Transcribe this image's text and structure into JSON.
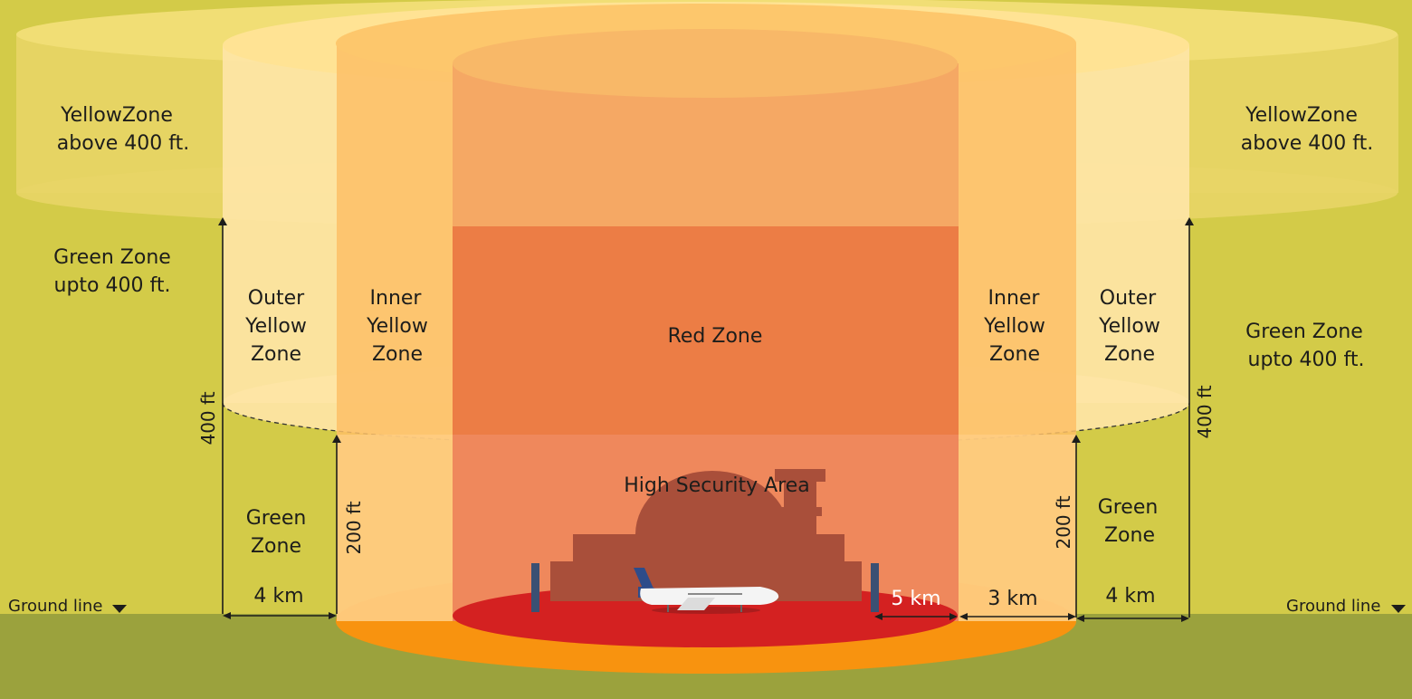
{
  "labels": {
    "yellow_left_1": "YellowZone",
    "yellow_left_2": "above 400 ft.",
    "yellow_right_1": "YellowZone",
    "yellow_right_2": "above 400 ft.",
    "green_left_1": "Green Zone",
    "green_left_2": "upto 400 ft.",
    "green_right_1": "Green Zone",
    "green_right_2": "upto 400 ft.",
    "outer_yellow_1": "Outer",
    "outer_yellow_2": "Yellow",
    "outer_yellow_3": "Zone",
    "inner_yellow_1": "Inner",
    "inner_yellow_2": "Yellow",
    "inner_yellow_3": "Zone",
    "red_zone": "Red Zone",
    "high_security": "High Security Area",
    "green_small_1": "Green",
    "green_small_2": "Zone",
    "ground_line": "Ground line"
  },
  "dimensions": {
    "h400": "400 ft",
    "h200": "200 ft",
    "d4km": "4 km",
    "d3km": "3 km",
    "d5km": "5 km"
  },
  "colors": {
    "background": "#d3cb48",
    "ground": "#9ba23d",
    "red_zone": "#ec7d45",
    "inner_yellow": "#fdbf66",
    "outer_yellow": "#fee5a6",
    "high_security_disk": "#d42121",
    "orange_disk": "#f8930f",
    "building": "#a94f3a"
  },
  "icons": [
    "airplane-icon",
    "airport-building-icon",
    "ground-arrow-icon"
  ]
}
